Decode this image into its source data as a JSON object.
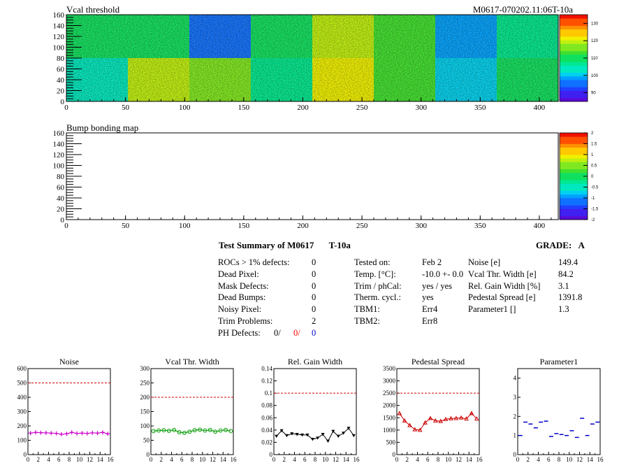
{
  "module_id": "M0617-070202.11:06T-10a",
  "threshold_map": {
    "title": "Vcal threshold",
    "x_ticks": [
      "0",
      "50",
      "100",
      "150",
      "200",
      "250",
      "300",
      "350",
      "400"
    ],
    "y_ticks": [
      "0",
      "20",
      "40",
      "60",
      "80",
      "100",
      "120",
      "140",
      "160"
    ],
    "palette_ticks": [
      "90",
      "100",
      "110",
      "120",
      "130"
    ],
    "roc_mean_levels": {
      "top_row": [
        111,
        111,
        94,
        109,
        118,
        113,
        99,
        108
      ],
      "bottom_row": [
        103,
        119,
        117,
        108,
        121,
        113,
        101,
        109
      ]
    }
  },
  "bump_map": {
    "title": "Bump bonding map",
    "x_ticks": [
      "0",
      "50",
      "100",
      "150",
      "200",
      "250",
      "300",
      "350",
      "400"
    ],
    "y_ticks": [
      "0",
      "20",
      "40",
      "60",
      "80",
      "100",
      "120",
      "140",
      "160"
    ],
    "palette_ticks": [
      "-2",
      "-1.5",
      "-1",
      "-0.5",
      "0",
      "0.5",
      "1",
      "1.5",
      "2"
    ]
  },
  "summary": {
    "title": "Test Summary of M0617",
    "temp_tag": "T-10a",
    "grade_label": "GRADE:",
    "grade": "A",
    "defects": [
      {
        "label": "ROCs > 1% defects:",
        "value": "0"
      },
      {
        "label": "Dead Pixel:",
        "value": "0"
      },
      {
        "label": "Mask Defects:",
        "value": "0"
      },
      {
        "label": "Dead Bumps:",
        "value": "0"
      },
      {
        "label": "Noisy Pixel:",
        "value": "0"
      },
      {
        "label": "Trim Problems:",
        "value": "2"
      }
    ],
    "ph_defects": {
      "label": "PH Defects:",
      "v1": "0/",
      "v2": "0/",
      "v3": "0",
      "c2": "#ff0000",
      "c3": "#0000cc"
    },
    "conditions": [
      {
        "label": "Tested on:",
        "value": "Feb 2"
      },
      {
        "label": "Temp. [°C]:",
        "value": "-10.0 +- 0.0"
      },
      {
        "label": "Trim / phCal:",
        "value": "yes / yes"
      },
      {
        "label": "Therm. cycl.:",
        "value": "yes"
      },
      {
        "label": "TBM1:",
        "value": "Err4"
      },
      {
        "label": "TBM2:",
        "value": "Err8"
      }
    ],
    "widths": [
      {
        "label": "Noise [e]",
        "value": "149.4"
      },
      {
        "label": "Vcal Thr. Width [e]",
        "value": "84.2"
      },
      {
        "label": "Rel. Gain Width [%]",
        "value": "3.1"
      },
      {
        "label": "Pedestal Spread [e]",
        "value": "1391.8"
      },
      {
        "label": "Parameter1 []",
        "value": "1.3"
      }
    ]
  },
  "chart_data": [
    {
      "type": "line",
      "title": "Noise",
      "color": "#cc00cc",
      "marker": "plus",
      "x": [
        0,
        1,
        2,
        3,
        4,
        5,
        6,
        7,
        8,
        9,
        10,
        11,
        12,
        13,
        14,
        15
      ],
      "values": [
        150,
        155,
        153,
        152,
        150,
        148,
        142,
        145,
        155,
        148,
        150,
        148,
        152,
        150,
        155,
        145
      ],
      "ylim": [
        0,
        600
      ],
      "y_ticks": [
        "0",
        "100",
        "200",
        "300",
        "400",
        "500",
        "600"
      ],
      "limit": 500
    },
    {
      "type": "line",
      "title": "Vcal Thr. Width",
      "color": "#009900",
      "marker": "circle",
      "x": [
        0,
        1,
        2,
        3,
        4,
        5,
        6,
        7,
        8,
        9,
        10,
        11,
        12,
        13,
        14,
        15
      ],
      "values": [
        82,
        84,
        85,
        83,
        86,
        78,
        76,
        80,
        85,
        87,
        84,
        86,
        80,
        84,
        86,
        82
      ],
      "ylim": [
        0,
        300
      ],
      "y_ticks": [
        "0",
        "50",
        "100",
        "150",
        "200",
        "250",
        "300"
      ],
      "limit": 200
    },
    {
      "type": "line",
      "title": "Rel. Gain Width",
      "color": "#000000",
      "marker": "triangle-down",
      "x": [
        0,
        1,
        2,
        3,
        4,
        5,
        6,
        7,
        8,
        9,
        10,
        11,
        12,
        13,
        14,
        15
      ],
      "values": [
        0.03,
        0.039,
        0.031,
        0.034,
        0.033,
        0.032,
        0.032,
        0.025,
        0.027,
        0.033,
        0.022,
        0.038,
        0.03,
        0.035,
        0.043,
        0.031
      ],
      "ylim": [
        0,
        0.14
      ],
      "y_ticks": [
        "0",
        "0.02",
        "0.04",
        "0.06",
        "0.08",
        "0.1",
        "0.12",
        "0.14"
      ],
      "limit": 0.1
    },
    {
      "type": "line",
      "title": "Pedestal Spread",
      "color": "#cc0000",
      "marker": "triangle-up",
      "x": [
        0,
        1,
        2,
        3,
        4,
        5,
        6,
        7,
        8,
        9,
        10,
        11,
        12,
        13,
        14,
        15
      ],
      "values": [
        1680,
        1380,
        1190,
        1020,
        1000,
        1300,
        1480,
        1380,
        1360,
        1440,
        1470,
        1480,
        1500,
        1460,
        1680,
        1460
      ],
      "ylim": [
        0,
        3500
      ],
      "y_ticks": [
        "0",
        "500",
        "1000",
        "1500",
        "2000",
        "2500",
        "3000",
        "3500"
      ],
      "limit": 2500
    },
    {
      "type": "scatter",
      "title": "Parameter1",
      "color": "#0000cc",
      "marker": "hline",
      "x": [
        0,
        1,
        2,
        3,
        4,
        5,
        6,
        7,
        8,
        9,
        10,
        11,
        12,
        13,
        14,
        15
      ],
      "values": [
        1.0,
        1.7,
        1.6,
        1.4,
        1.7,
        1.75,
        0.95,
        1.1,
        1.05,
        1.0,
        1.25,
        0.9,
        1.9,
        1.0,
        1.6,
        1.7
      ],
      "ylim": [
        0,
        4.5
      ],
      "y_ticks": [
        "0",
        "1",
        "2",
        "3",
        "4"
      ],
      "limit": null
    }
  ]
}
